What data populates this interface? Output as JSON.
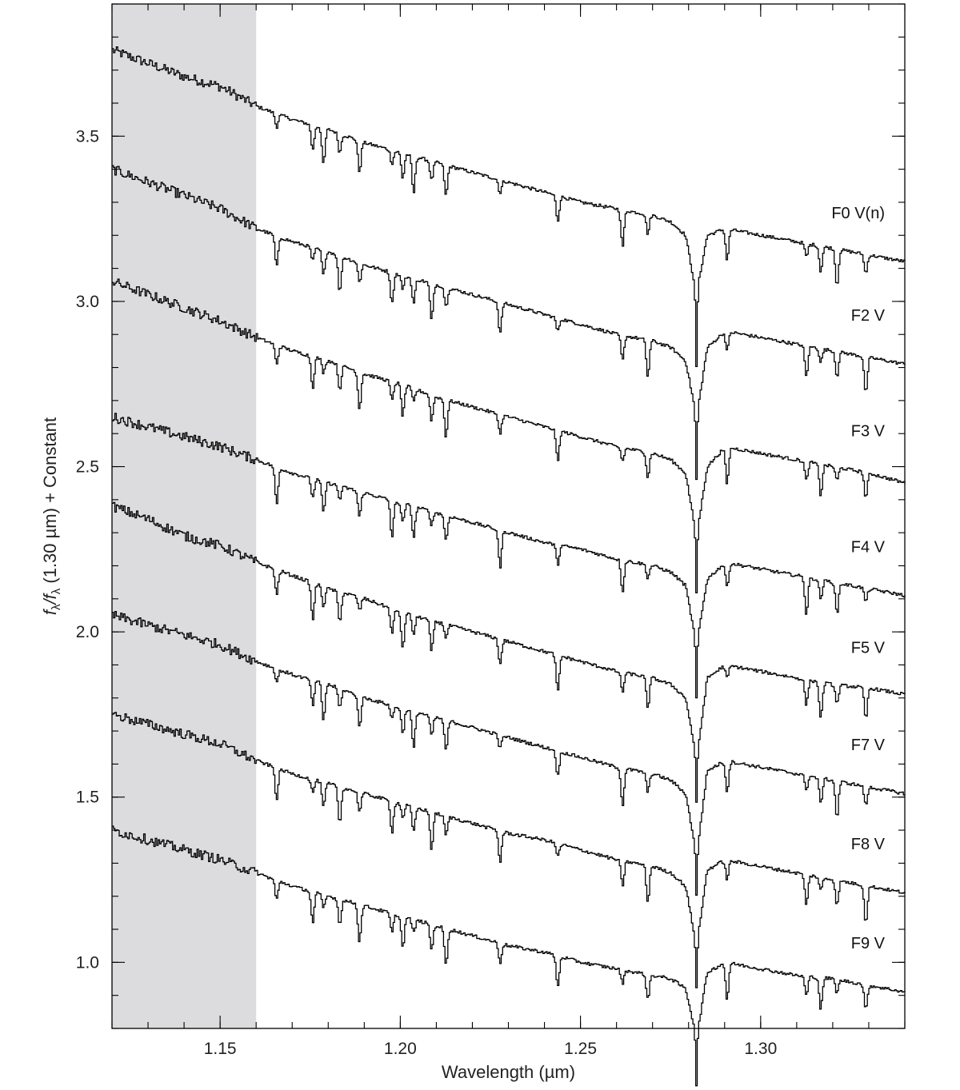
{
  "chart_data": {
    "type": "line",
    "xlabel": "Wavelength (µm)",
    "ylabel": {
      "main": "f",
      "sub": "λ",
      "slash": "/f",
      "sub2": "λ",
      "tail": " (1.30 µm) + Constant"
    },
    "xlim": [
      1.12,
      1.34
    ],
    "ylim": [
      0.8,
      3.9
    ],
    "x_ticks": [
      {
        "value": 1.15,
        "label": "1.15"
      },
      {
        "value": 1.2,
        "label": "1.20"
      },
      {
        "value": 1.25,
        "label": "1.25"
      },
      {
        "value": 1.3,
        "label": "1.30"
      }
    ],
    "y_ticks": [
      {
        "value": 1.0,
        "label": "1.0"
      },
      {
        "value": 1.5,
        "label": "1.5"
      },
      {
        "value": 2.0,
        "label": "2.0"
      },
      {
        "value": 2.5,
        "label": "2.5"
      },
      {
        "value": 3.0,
        "label": "3.0"
      },
      {
        "value": 3.5,
        "label": "3.5"
      }
    ],
    "x_minor_step": 0.01,
    "y_minor_step": 0.1,
    "shaded_region": {
      "x_range": [
        1.12,
        1.16
      ],
      "color": "#dcdcde"
    },
    "grid": false,
    "line_color": "#000000",
    "series": [
      {
        "name": "F0 V(n)",
        "points": [
          [
            1.12,
            3.76
          ],
          [
            1.13,
            3.72
          ],
          [
            1.14,
            3.68
          ],
          [
            1.15,
            3.65
          ],
          [
            1.16,
            3.59
          ],
          [
            1.17,
            3.55
          ],
          [
            1.18,
            3.52
          ],
          [
            1.19,
            3.48
          ],
          [
            1.2,
            3.45
          ],
          [
            1.21,
            3.42
          ],
          [
            1.22,
            3.39
          ],
          [
            1.23,
            3.36
          ],
          [
            1.24,
            3.33
          ],
          [
            1.25,
            3.3
          ],
          [
            1.26,
            3.28
          ],
          [
            1.27,
            3.26
          ],
          [
            1.275,
            3.24
          ],
          [
            1.279,
            3.2
          ],
          [
            1.2815,
            3.05
          ],
          [
            1.282,
            2.8
          ],
          [
            1.2825,
            3.05
          ],
          [
            1.285,
            3.2
          ],
          [
            1.29,
            3.22
          ],
          [
            1.3,
            3.2
          ],
          [
            1.31,
            3.18
          ],
          [
            1.32,
            3.16
          ],
          [
            1.33,
            3.14
          ],
          [
            1.34,
            3.12
          ]
        ]
      },
      {
        "name": "F2 V",
        "points": [
          [
            1.12,
            3.4
          ],
          [
            1.13,
            3.36
          ],
          [
            1.14,
            3.32
          ],
          [
            1.15,
            3.28
          ],
          [
            1.16,
            3.22
          ],
          [
            1.17,
            3.18
          ],
          [
            1.18,
            3.15
          ],
          [
            1.19,
            3.11
          ],
          [
            1.2,
            3.08
          ],
          [
            1.21,
            3.05
          ],
          [
            1.22,
            3.02
          ],
          [
            1.23,
            2.99
          ],
          [
            1.24,
            2.96
          ],
          [
            1.25,
            2.93
          ],
          [
            1.26,
            2.9
          ],
          [
            1.27,
            2.88
          ],
          [
            1.275,
            2.86
          ],
          [
            1.279,
            2.82
          ],
          [
            1.2815,
            2.68
          ],
          [
            1.282,
            2.46
          ],
          [
            1.2825,
            2.68
          ],
          [
            1.285,
            2.86
          ],
          [
            1.29,
            2.91
          ],
          [
            1.3,
            2.89
          ],
          [
            1.31,
            2.87
          ],
          [
            1.32,
            2.85
          ],
          [
            1.33,
            2.83
          ],
          [
            1.34,
            2.81
          ]
        ]
      },
      {
        "name": "F3 V",
        "points": [
          [
            1.12,
            3.06
          ],
          [
            1.13,
            3.02
          ],
          [
            1.14,
            2.98
          ],
          [
            1.15,
            2.94
          ],
          [
            1.16,
            2.89
          ],
          [
            1.17,
            2.85
          ],
          [
            1.18,
            2.82
          ],
          [
            1.19,
            2.78
          ],
          [
            1.2,
            2.75
          ],
          [
            1.21,
            2.71
          ],
          [
            1.22,
            2.68
          ],
          [
            1.23,
            2.65
          ],
          [
            1.24,
            2.62
          ],
          [
            1.25,
            2.59
          ],
          [
            1.26,
            2.56
          ],
          [
            1.27,
            2.54
          ],
          [
            1.275,
            2.52
          ],
          [
            1.279,
            2.48
          ],
          [
            1.2815,
            2.32
          ],
          [
            1.282,
            2.12
          ],
          [
            1.2825,
            2.32
          ],
          [
            1.285,
            2.5
          ],
          [
            1.29,
            2.56
          ],
          [
            1.3,
            2.54
          ],
          [
            1.31,
            2.52
          ],
          [
            1.32,
            2.5
          ],
          [
            1.33,
            2.48
          ],
          [
            1.34,
            2.45
          ]
        ]
      },
      {
        "name": "F4 V",
        "points": [
          [
            1.12,
            2.65
          ],
          [
            1.13,
            2.62
          ],
          [
            1.14,
            2.59
          ],
          [
            1.15,
            2.56
          ],
          [
            1.16,
            2.52
          ],
          [
            1.17,
            2.48
          ],
          [
            1.18,
            2.45
          ],
          [
            1.19,
            2.42
          ],
          [
            1.2,
            2.39
          ],
          [
            1.21,
            2.36
          ],
          [
            1.22,
            2.33
          ],
          [
            1.23,
            2.3
          ],
          [
            1.24,
            2.27
          ],
          [
            1.25,
            2.25
          ],
          [
            1.26,
            2.22
          ],
          [
            1.27,
            2.2
          ],
          [
            1.275,
            2.18
          ],
          [
            1.279,
            2.14
          ],
          [
            1.2815,
            1.99
          ],
          [
            1.282,
            1.8
          ],
          [
            1.2825,
            1.99
          ],
          [
            1.285,
            2.16
          ],
          [
            1.29,
            2.21
          ],
          [
            1.3,
            2.19
          ],
          [
            1.31,
            2.17
          ],
          [
            1.32,
            2.15
          ],
          [
            1.33,
            2.13
          ],
          [
            1.34,
            2.11
          ]
        ]
      },
      {
        "name": "F5 V",
        "points": [
          [
            1.12,
            2.38
          ],
          [
            1.13,
            2.34
          ],
          [
            1.14,
            2.29
          ],
          [
            1.15,
            2.26
          ],
          [
            1.16,
            2.21
          ],
          [
            1.17,
            2.17
          ],
          [
            1.18,
            2.13
          ],
          [
            1.19,
            2.1
          ],
          [
            1.2,
            2.06
          ],
          [
            1.21,
            2.03
          ],
          [
            1.22,
            2.0
          ],
          [
            1.23,
            1.97
          ],
          [
            1.24,
            1.94
          ],
          [
            1.25,
            1.91
          ],
          [
            1.26,
            1.88
          ],
          [
            1.27,
            1.86
          ],
          [
            1.275,
            1.84
          ],
          [
            1.279,
            1.8
          ],
          [
            1.2815,
            1.65
          ],
          [
            1.282,
            1.48
          ],
          [
            1.2825,
            1.65
          ],
          [
            1.285,
            1.86
          ],
          [
            1.29,
            1.9
          ],
          [
            1.3,
            1.88
          ],
          [
            1.31,
            1.86
          ],
          [
            1.32,
            1.84
          ],
          [
            1.33,
            1.83
          ],
          [
            1.34,
            1.81
          ]
        ]
      },
      {
        "name": "F7 V",
        "points": [
          [
            1.12,
            2.05
          ],
          [
            1.13,
            2.02
          ],
          [
            1.14,
            1.99
          ],
          [
            1.15,
            1.96
          ],
          [
            1.16,
            1.91
          ],
          [
            1.17,
            1.87
          ],
          [
            1.18,
            1.84
          ],
          [
            1.19,
            1.8
          ],
          [
            1.2,
            1.77
          ],
          [
            1.21,
            1.74
          ],
          [
            1.22,
            1.71
          ],
          [
            1.23,
            1.68
          ],
          [
            1.24,
            1.65
          ],
          [
            1.25,
            1.62
          ],
          [
            1.26,
            1.59
          ],
          [
            1.27,
            1.57
          ],
          [
            1.275,
            1.55
          ],
          [
            1.279,
            1.51
          ],
          [
            1.2815,
            1.36
          ],
          [
            1.282,
            1.2
          ],
          [
            1.2825,
            1.36
          ],
          [
            1.285,
            1.58
          ],
          [
            1.29,
            1.61
          ],
          [
            1.3,
            1.59
          ],
          [
            1.31,
            1.57
          ],
          [
            1.32,
            1.55
          ],
          [
            1.33,
            1.53
          ],
          [
            1.34,
            1.51
          ]
        ]
      },
      {
        "name": "F8 V",
        "points": [
          [
            1.12,
            1.75
          ],
          [
            1.13,
            1.72
          ],
          [
            1.14,
            1.69
          ],
          [
            1.15,
            1.66
          ],
          [
            1.16,
            1.61
          ],
          [
            1.17,
            1.57
          ],
          [
            1.18,
            1.54
          ],
          [
            1.19,
            1.51
          ],
          [
            1.2,
            1.48
          ],
          [
            1.21,
            1.45
          ],
          [
            1.22,
            1.42
          ],
          [
            1.23,
            1.39
          ],
          [
            1.24,
            1.37
          ],
          [
            1.25,
            1.34
          ],
          [
            1.26,
            1.31
          ],
          [
            1.27,
            1.29
          ],
          [
            1.275,
            1.27
          ],
          [
            1.279,
            1.23
          ],
          [
            1.2815,
            1.08
          ],
          [
            1.282,
            0.92
          ],
          [
            1.2825,
            1.08
          ],
          [
            1.285,
            1.28
          ],
          [
            1.29,
            1.31
          ],
          [
            1.3,
            1.29
          ],
          [
            1.31,
            1.27
          ],
          [
            1.32,
            1.25
          ],
          [
            1.33,
            1.23
          ],
          [
            1.34,
            1.21
          ]
        ]
      },
      {
        "name": "F9 V",
        "points": [
          [
            1.12,
            1.4
          ],
          [
            1.13,
            1.37
          ],
          [
            1.14,
            1.34
          ],
          [
            1.15,
            1.31
          ],
          [
            1.16,
            1.27
          ],
          [
            1.17,
            1.23
          ],
          [
            1.18,
            1.2
          ],
          [
            1.19,
            1.17
          ],
          [
            1.2,
            1.14
          ],
          [
            1.21,
            1.11
          ],
          [
            1.22,
            1.08
          ],
          [
            1.23,
            1.05
          ],
          [
            1.24,
            1.03
          ],
          [
            1.25,
            1.0
          ],
          [
            1.26,
            0.98
          ],
          [
            1.27,
            0.96
          ],
          [
            1.275,
            0.95
          ],
          [
            1.279,
            0.92
          ],
          [
            1.2815,
            0.8
          ],
          [
            1.282,
            0.63
          ],
          [
            1.2825,
            0.8
          ],
          [
            1.285,
            0.97
          ],
          [
            1.29,
            1.0
          ],
          [
            1.3,
            0.98
          ],
          [
            1.31,
            0.96
          ],
          [
            1.32,
            0.95
          ],
          [
            1.33,
            0.93
          ],
          [
            1.34,
            0.91
          ]
        ]
      }
    ]
  }
}
